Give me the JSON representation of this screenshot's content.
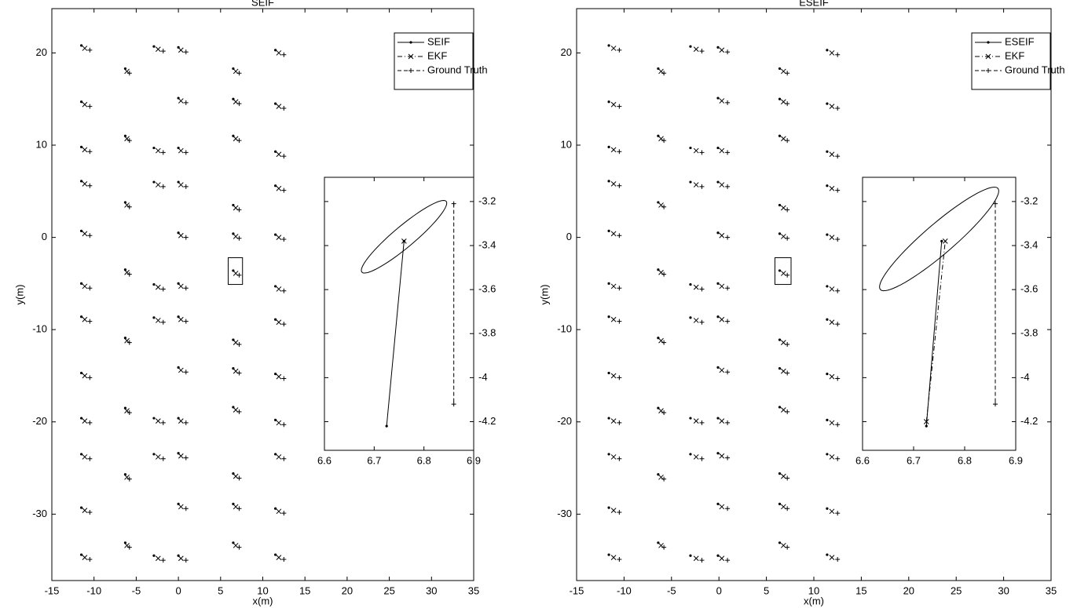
{
  "chart_data": [
    {
      "type": "scatter",
      "title": "SEIF",
      "x_label": "x(m)",
      "y_label": "y(m)",
      "xlim": [
        -15,
        35
      ],
      "ylim": [
        -37.2,
        24.8
      ],
      "xticks": [
        -15,
        -10,
        -5,
        0,
        5,
        10,
        15,
        20,
        25,
        30,
        35
      ],
      "yticks": [
        -30,
        -20,
        -10,
        0,
        10,
        20
      ],
      "legend": "upper right",
      "zoom_box": {
        "x": [
          5.9,
          7.6
        ],
        "y": [
          -5.1,
          -2.2
        ]
      },
      "series": [
        {
          "name": "SEIF",
          "color": "#000000",
          "line_style": "solid",
          "marker": "dot",
          "x": [
            -11.5,
            -11.5,
            -11.5,
            -11.5,
            -11.5,
            -11.5,
            -11.5,
            -11.5,
            -11.5,
            -11.5,
            -11.5,
            -11.5,
            -6.3,
            -6.3,
            -6.3,
            -6.3,
            -6.3,
            -6.3,
            -6.3,
            -6.3,
            -2.9,
            -2.9,
            -2.9,
            -2.9,
            -2.9,
            -2.9,
            -2.9,
            -2.9,
            0,
            0,
            0,
            0,
            0,
            0,
            0,
            0,
            0,
            0,
            0,
            0,
            6.5,
            6.5,
            6.5,
            6.5,
            6.5,
            6.5,
            6.5,
            6.5,
            6.5,
            6.5,
            6.5,
            6.5,
            11.5,
            11.5,
            11.5,
            11.5,
            11.5,
            11.5,
            11.5,
            11.5,
            11.5,
            11.5,
            11.5,
            11.5
          ],
          "y": [
            20.8,
            14.7,
            9.8,
            6.1,
            0.7,
            -5,
            -8.6,
            -14.7,
            -19.6,
            -23.5,
            -29.3,
            -34.4,
            18.3,
            11,
            3.8,
            -3.5,
            -10.9,
            -18.5,
            -25.7,
            -33.1,
            20.7,
            9.7,
            6,
            -5.1,
            -8.7,
            -19.6,
            -23.5,
            -34.5,
            20.6,
            15.1,
            9.7,
            6,
            0.5,
            -5,
            -8.6,
            -14.1,
            -19.6,
            -23.4,
            -28.9,
            -34.5,
            18.3,
            15,
            11,
            3.5,
            0.4,
            -3.6,
            -11.1,
            -14.2,
            -18.4,
            -25.6,
            -28.9,
            -33.1,
            20.3,
            14.5,
            9.3,
            5.6,
            0.3,
            -5.3,
            -8.9,
            -14.8,
            -19.8,
            -23.5,
            -29.4,
            -34.4
          ]
        },
        {
          "name": "EKF",
          "color": "#000000",
          "line_style": "dash-dot",
          "marker": "x",
          "x": [
            -11.1,
            -11.1,
            -11.1,
            -11.1,
            -11.1,
            -11.1,
            -11.1,
            -11.1,
            -11.1,
            -11.1,
            -11.1,
            -11.1,
            -6.1,
            -6.1,
            -6.1,
            -6.1,
            -6.1,
            -6.1,
            -6.1,
            -6.1,
            -2.4,
            -2.4,
            -2.4,
            -2.4,
            -2.4,
            -2.4,
            -2.4,
            -2.4,
            0.3,
            0.3,
            0.3,
            0.3,
            0.3,
            0.3,
            0.3,
            0.3,
            0.3,
            0.3,
            0.3,
            0.3,
            6.8,
            6.8,
            6.8,
            6.8,
            6.8,
            6.8,
            6.8,
            6.8,
            6.8,
            6.8,
            6.8,
            6.8,
            11.9,
            11.9,
            11.9,
            11.9,
            11.9,
            11.9,
            11.9,
            11.9,
            11.9,
            11.9,
            11.9,
            11.9
          ],
          "y": [
            20.5,
            14.4,
            9.5,
            5.8,
            0.4,
            -5.3,
            -8.9,
            -15,
            -19.9,
            -23.8,
            -29.6,
            -34.7,
            18,
            10.7,
            3.5,
            -3.8,
            -11.2,
            -18.8,
            -26,
            -33.4,
            20.4,
            9.4,
            5.7,
            -5.4,
            -9,
            -19.9,
            -23.8,
            -34.8,
            20.3,
            14.8,
            9.4,
            5.7,
            0.2,
            -5.3,
            -8.9,
            -14.4,
            -19.9,
            -23.7,
            -29.2,
            -34.8,
            18,
            14.7,
            10.7,
            3.2,
            0.1,
            -3.9,
            -11.4,
            -14.5,
            -18.7,
            -25.9,
            -29.2,
            -33.4,
            20,
            14.2,
            9,
            5.3,
            0,
            -5.6,
            -9.2,
            -15.1,
            -20.1,
            -23.8,
            -29.7,
            -34.7
          ]
        },
        {
          "name": "Ground Truth",
          "color": "#000000",
          "line_style": "dashed",
          "marker": "plus",
          "x": [
            -10.5,
            -10.5,
            -10.5,
            -10.5,
            -10.5,
            -10.5,
            -10.5,
            -10.5,
            -10.5,
            -10.5,
            -10.5,
            -10.5,
            -5.8,
            -5.8,
            -5.8,
            -5.8,
            -5.8,
            -5.8,
            -5.8,
            -5.8,
            -1.8,
            -1.8,
            -1.8,
            -1.8,
            -1.8,
            -1.8,
            -1.8,
            -1.8,
            0.9,
            0.9,
            0.9,
            0.9,
            0.9,
            0.9,
            0.9,
            0.9,
            0.9,
            0.9,
            0.9,
            0.9,
            7.2,
            7.2,
            7.2,
            7.2,
            7.2,
            7.2,
            7.2,
            7.2,
            7.2,
            7.2,
            7.2,
            7.2,
            12.5,
            12.5,
            12.5,
            12.5,
            12.5,
            12.5,
            12.5,
            12.5,
            12.5,
            12.5,
            12.5,
            12.5
          ],
          "y": [
            20.3,
            14.2,
            9.3,
            5.6,
            0.2,
            -5.5,
            -9.1,
            -15.2,
            -20.1,
            -24,
            -29.8,
            -34.9,
            17.8,
            10.5,
            3.3,
            -4,
            -11.4,
            -19,
            -26.2,
            -33.6,
            20.2,
            9.2,
            5.5,
            -5.6,
            -9.2,
            -20.1,
            -24,
            -35,
            20.1,
            14.6,
            9.2,
            5.5,
            0,
            -5.5,
            -9.1,
            -14.6,
            -20.1,
            -23.9,
            -29.4,
            -35,
            17.8,
            14.5,
            10.5,
            3,
            -0.1,
            -4.1,
            -11.6,
            -14.7,
            -18.9,
            -26.1,
            -29.4,
            -33.6,
            19.8,
            14,
            8.8,
            5.1,
            -0.2,
            -5.8,
            -9.4,
            -15.3,
            -20.3,
            -24,
            -29.9,
            -34.9
          ]
        }
      ]
    },
    {
      "type": "line",
      "xlim": [
        6.6,
        6.9
      ],
      "ylim": [
        -4.33,
        -3.09
      ],
      "xticks": [
        6.6,
        6.7,
        6.8,
        6.9
      ],
      "yticks": [
        -4.2,
        -4,
        -3.8,
        -3.6,
        -3.4,
        -3.2
      ],
      "ellipse": {
        "center": [
          6.76,
          -3.36
        ],
        "axis1": [
          0.085,
          0.16
        ],
        "axis2": [
          -0.012,
          0.04
        ]
      },
      "series": [
        {
          "name": "SEIF",
          "color": "#000000",
          "line_style": "solid",
          "marker": "dot",
          "x": [
            6.725,
            6.76
          ],
          "y": [
            -4.22,
            -3.38
          ]
        },
        {
          "name": "EKF",
          "color": "#000000",
          "line_style": "dash-dot",
          "marker": "x",
          "x": [
            6.76
          ],
          "y": [
            -3.38
          ]
        },
        {
          "name": "Ground Truth",
          "color": "#000000",
          "line_style": "dashed",
          "marker": "plus",
          "x": [
            6.86,
            6.86
          ],
          "y": [
            -3.21,
            -4.12
          ]
        }
      ]
    },
    {
      "type": "scatter",
      "title": "ESEIF",
      "x_label": "x(m)",
      "y_label": "y(m)",
      "xlim": [
        -15,
        35
      ],
      "ylim": [
        -37.2,
        24.8
      ],
      "xticks": [
        -15,
        -10,
        -5,
        0,
        5,
        10,
        15,
        20,
        25,
        30,
        35
      ],
      "yticks": [
        -30,
        -20,
        -10,
        0,
        10,
        20
      ],
      "legend": "upper right",
      "zoom_box": {
        "x": [
          5.9,
          7.6
        ],
        "y": [
          -5.1,
          -2.2
        ]
      },
      "series": [
        {
          "name": "ESEIF",
          "color": "#000000",
          "line_style": "solid",
          "marker": "dot",
          "x": [
            -11.6,
            -11.6,
            -11.6,
            -11.6,
            -11.6,
            -11.6,
            -11.6,
            -11.6,
            -11.6,
            -11.6,
            -11.6,
            -11.6,
            -6.4,
            -6.4,
            -6.4,
            -6.4,
            -6.4,
            -6.4,
            -6.4,
            -6.4,
            -3,
            -3,
            -3,
            -3,
            -3,
            -3,
            -3,
            -3,
            -0.1,
            -0.1,
            -0.1,
            -0.1,
            -0.1,
            -0.1,
            -0.1,
            -0.1,
            -0.1,
            -0.1,
            -0.1,
            -0.1,
            6.4,
            6.4,
            6.4,
            6.4,
            6.4,
            6.4,
            6.4,
            6.4,
            6.4,
            6.4,
            6.4,
            6.4,
            11.4,
            11.4,
            11.4,
            11.4,
            11.4,
            11.4,
            11.4,
            11.4,
            11.4,
            11.4,
            11.4,
            11.4
          ],
          "y": [
            20.8,
            14.7,
            9.8,
            6.1,
            0.7,
            -5,
            -8.6,
            -14.7,
            -19.6,
            -23.5,
            -29.3,
            -34.4,
            18.3,
            11,
            3.8,
            -3.5,
            -10.9,
            -18.5,
            -25.7,
            -33.1,
            20.7,
            9.7,
            6,
            -5.1,
            -8.7,
            -19.6,
            -23.5,
            -34.5,
            20.6,
            15.1,
            9.7,
            6,
            0.5,
            -5,
            -8.6,
            -14.1,
            -19.6,
            -23.4,
            -28.9,
            -34.5,
            18.3,
            15,
            11,
            3.5,
            0.4,
            -3.6,
            -11.1,
            -14.2,
            -18.4,
            -25.6,
            -28.9,
            -33.1,
            20.3,
            14.5,
            9.3,
            5.6,
            0.3,
            -5.3,
            -8.9,
            -14.8,
            -19.8,
            -23.5,
            -29.4,
            -34.4
          ]
        },
        {
          "name": "EKF",
          "color": "#000000",
          "line_style": "dash-dot",
          "marker": "x",
          "x": [
            -11.1,
            -11.1,
            -11.1,
            -11.1,
            -11.1,
            -11.1,
            -11.1,
            -11.1,
            -11.1,
            -11.1,
            -11.1,
            -11.1,
            -6.1,
            -6.1,
            -6.1,
            -6.1,
            -6.1,
            -6.1,
            -6.1,
            -6.1,
            -2.4,
            -2.4,
            -2.4,
            -2.4,
            -2.4,
            -2.4,
            -2.4,
            -2.4,
            0.3,
            0.3,
            0.3,
            0.3,
            0.3,
            0.3,
            0.3,
            0.3,
            0.3,
            0.3,
            0.3,
            0.3,
            6.8,
            6.8,
            6.8,
            6.8,
            6.8,
            6.8,
            6.8,
            6.8,
            6.8,
            6.8,
            6.8,
            6.8,
            11.9,
            11.9,
            11.9,
            11.9,
            11.9,
            11.9,
            11.9,
            11.9,
            11.9,
            11.9,
            11.9,
            11.9
          ],
          "y": [
            20.5,
            14.4,
            9.5,
            5.8,
            0.4,
            -5.3,
            -8.9,
            -15,
            -19.9,
            -23.8,
            -29.6,
            -34.7,
            18,
            10.7,
            3.5,
            -3.8,
            -11.2,
            -18.8,
            -26,
            -33.4,
            20.4,
            9.4,
            5.7,
            -5.4,
            -9,
            -19.9,
            -23.8,
            -34.8,
            20.3,
            14.8,
            9.4,
            5.7,
            0.2,
            -5.3,
            -8.9,
            -14.4,
            -19.9,
            -23.7,
            -29.2,
            -34.8,
            18,
            14.7,
            10.7,
            3.2,
            0.1,
            -3.9,
            -11.4,
            -14.5,
            -18.7,
            -25.9,
            -29.2,
            -33.4,
            20,
            14.2,
            9,
            5.3,
            0,
            -5.6,
            -9.2,
            -15.1,
            -20.1,
            -23.8,
            -29.7,
            -34.7
          ]
        },
        {
          "name": "Ground Truth",
          "color": "#000000",
          "line_style": "dashed",
          "marker": "plus",
          "x": [
            -10.5,
            -10.5,
            -10.5,
            -10.5,
            -10.5,
            -10.5,
            -10.5,
            -10.5,
            -10.5,
            -10.5,
            -10.5,
            -10.5,
            -5.8,
            -5.8,
            -5.8,
            -5.8,
            -5.8,
            -5.8,
            -5.8,
            -5.8,
            -1.8,
            -1.8,
            -1.8,
            -1.8,
            -1.8,
            -1.8,
            -1.8,
            -1.8,
            0.9,
            0.9,
            0.9,
            0.9,
            0.9,
            0.9,
            0.9,
            0.9,
            0.9,
            0.9,
            0.9,
            0.9,
            7.2,
            7.2,
            7.2,
            7.2,
            7.2,
            7.2,
            7.2,
            7.2,
            7.2,
            7.2,
            7.2,
            7.2,
            12.5,
            12.5,
            12.5,
            12.5,
            12.5,
            12.5,
            12.5,
            12.5,
            12.5,
            12.5,
            12.5,
            12.5
          ],
          "y": [
            20.3,
            14.2,
            9.3,
            5.6,
            0.2,
            -5.5,
            -9.1,
            -15.2,
            -20.1,
            -24,
            -29.8,
            -34.9,
            17.8,
            10.5,
            3.3,
            -4,
            -11.4,
            -19,
            -26.2,
            -33.6,
            20.2,
            9.2,
            5.5,
            -5.6,
            -9.2,
            -20.1,
            -24,
            -35,
            20.1,
            14.6,
            9.2,
            5.5,
            0,
            -5.5,
            -9.1,
            -14.6,
            -20.1,
            -23.9,
            -29.4,
            -35,
            17.8,
            14.5,
            10.5,
            3,
            -0.1,
            -4.1,
            -11.6,
            -14.7,
            -18.9,
            -26.1,
            -29.4,
            -33.6,
            19.8,
            14,
            8.8,
            5.1,
            -0.2,
            -5.8,
            -9.4,
            -15.3,
            -20.3,
            -24,
            -29.9,
            -34.9
          ]
        }
      ]
    },
    {
      "type": "line",
      "xlim": [
        6.6,
        6.9
      ],
      "ylim": [
        -4.33,
        -3.09
      ],
      "xticks": [
        6.6,
        6.7,
        6.8,
        6.9
      ],
      "yticks": [
        -4.2,
        -4,
        -3.8,
        -3.6,
        -3.4,
        -3.2
      ],
      "ellipse": {
        "center": [
          6.75,
          -3.37
        ],
        "axis1": [
          0.115,
          0.23
        ],
        "axis2": [
          -0.02,
          0.05
        ]
      },
      "series": [
        {
          "name": "ESEIF",
          "color": "#000000",
          "line_style": "solid",
          "marker": "dot",
          "x": [
            6.725,
            6.755
          ],
          "y": [
            -4.22,
            -3.38
          ]
        },
        {
          "name": "EKF",
          "color": "#000000",
          "line_style": "dash-dot",
          "marker": "x",
          "x": [
            6.725,
            6.762
          ],
          "y": [
            -4.2,
            -3.38
          ]
        },
        {
          "name": "Ground Truth",
          "color": "#000000",
          "line_style": "dashed",
          "marker": "plus",
          "x": [
            6.86,
            6.86
          ],
          "y": [
            -3.21,
            -4.12
          ]
        }
      ]
    }
  ]
}
